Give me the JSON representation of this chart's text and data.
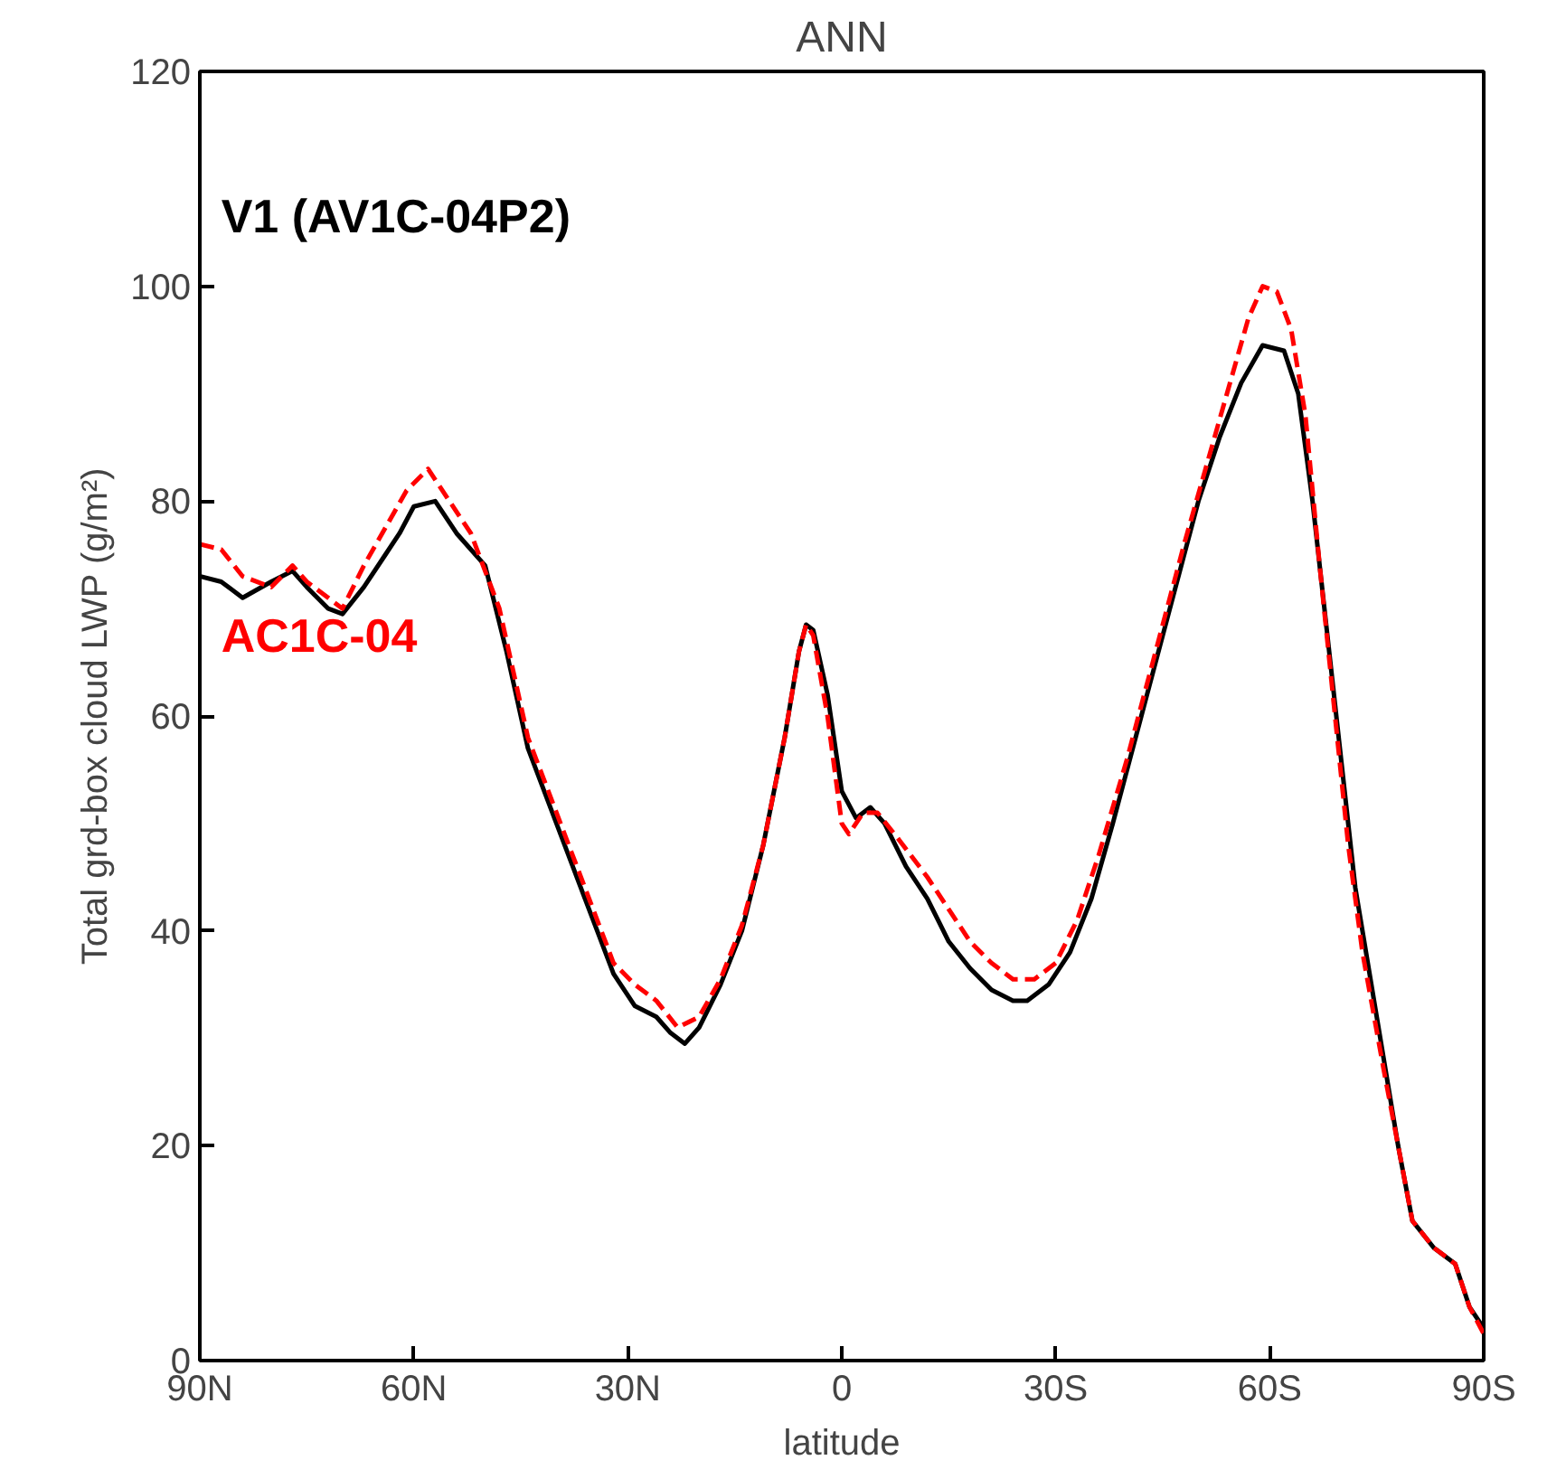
{
  "chart_data": {
    "type": "line",
    "title": "ANN",
    "xlabel": "latitude",
    "ylabel": "Total grd-box cloud LWP (g/m²)",
    "xlim": [
      90,
      -90
    ],
    "xticks": [
      {
        "value": 90,
        "label": "90N"
      },
      {
        "value": 60,
        "label": "60N"
      },
      {
        "value": 30,
        "label": "30N"
      },
      0,
      {
        "value": -30,
        "label": "30S"
      },
      {
        "value": -60,
        "label": "60S"
      },
      {
        "value": -90,
        "label": "90S"
      }
    ],
    "ylim": [
      0,
      120
    ],
    "yticks": [
      0,
      20,
      40,
      60,
      80,
      100,
      120
    ],
    "grid": false,
    "legend": false,
    "marker": "none",
    "series": [
      {
        "name": "V1 (AV1C-04P2)",
        "color": "#000000",
        "line_style": "solid",
        "x": [
          90,
          87,
          84,
          80,
          77,
          75,
          72,
          70,
          67,
          64,
          62,
          60,
          57,
          54,
          50,
          47,
          44,
          40,
          36,
          32,
          29,
          26,
          24,
          22,
          20,
          17,
          14,
          11,
          8,
          6,
          5,
          4,
          2,
          0,
          -2,
          -4,
          -6,
          -9,
          -12,
          -15,
          -18,
          -21,
          -24,
          -26,
          -29,
          -32,
          -35,
          -38,
          -42,
          -46,
          -50,
          -53,
          -56,
          -59,
          -62,
          -64,
          -66,
          -68,
          -70,
          -72,
          -75,
          -78,
          -80,
          -83,
          -86,
          -88,
          -90
        ],
        "values": [
          73,
          72.5,
          71,
          72.5,
          73.5,
          72,
          70,
          69.5,
          72,
          75,
          77,
          79.5,
          80,
          77,
          74,
          66,
          57,
          50,
          43,
          36,
          33,
          32,
          30.5,
          29.5,
          31,
          35,
          40,
          48,
          58,
          66,
          68.5,
          68,
          62,
          53,
          50.5,
          51.5,
          50,
          46,
          43,
          39,
          36.5,
          34.5,
          33.5,
          33.5,
          35,
          38,
          43,
          50,
          60,
          70,
          80,
          86,
          91,
          94.5,
          94,
          90,
          80,
          68,
          56,
          44,
          32,
          20,
          13,
          10.5,
          9,
          5,
          3
        ]
      },
      {
        "name": "AC1C-04",
        "color": "#ff0000",
        "line_style": "dashed",
        "x": [
          90,
          87,
          84,
          80,
          77,
          75,
          72,
          70,
          67,
          64,
          61,
          58,
          55,
          52,
          48,
          44,
          40,
          36,
          32,
          29,
          26,
          23,
          20,
          17,
          14,
          11,
          8,
          6,
          5,
          4,
          2,
          0,
          -1,
          -3,
          -5,
          -8,
          -12,
          -15,
          -18,
          -21,
          -24,
          -27,
          -30,
          -33,
          -36,
          -40,
          -44,
          -48,
          -51,
          -54,
          -57,
          -59,
          -61,
          -63,
          -65,
          -67,
          -69,
          -71,
          -73,
          -76,
          -78,
          -80,
          -83,
          -86,
          -88,
          -90
        ],
        "values": [
          76,
          75.5,
          73,
          72,
          74,
          72.5,
          71,
          70,
          74,
          77.5,
          81,
          83,
          80,
          77,
          70,
          58,
          51,
          44,
          37,
          35,
          33.5,
          31,
          32,
          35.5,
          40.5,
          48,
          58,
          66,
          68.5,
          67.5,
          60,
          50,
          49,
          51,
          51,
          48.5,
          45,
          42,
          39,
          37,
          35.5,
          35.5,
          37,
          41,
          47,
          56,
          66,
          76,
          83,
          90,
          97,
          100,
          99.5,
          96,
          88,
          74,
          61,
          48,
          38,
          27,
          20,
          13,
          10.5,
          9,
          5,
          2.5
        ]
      }
    ]
  }
}
